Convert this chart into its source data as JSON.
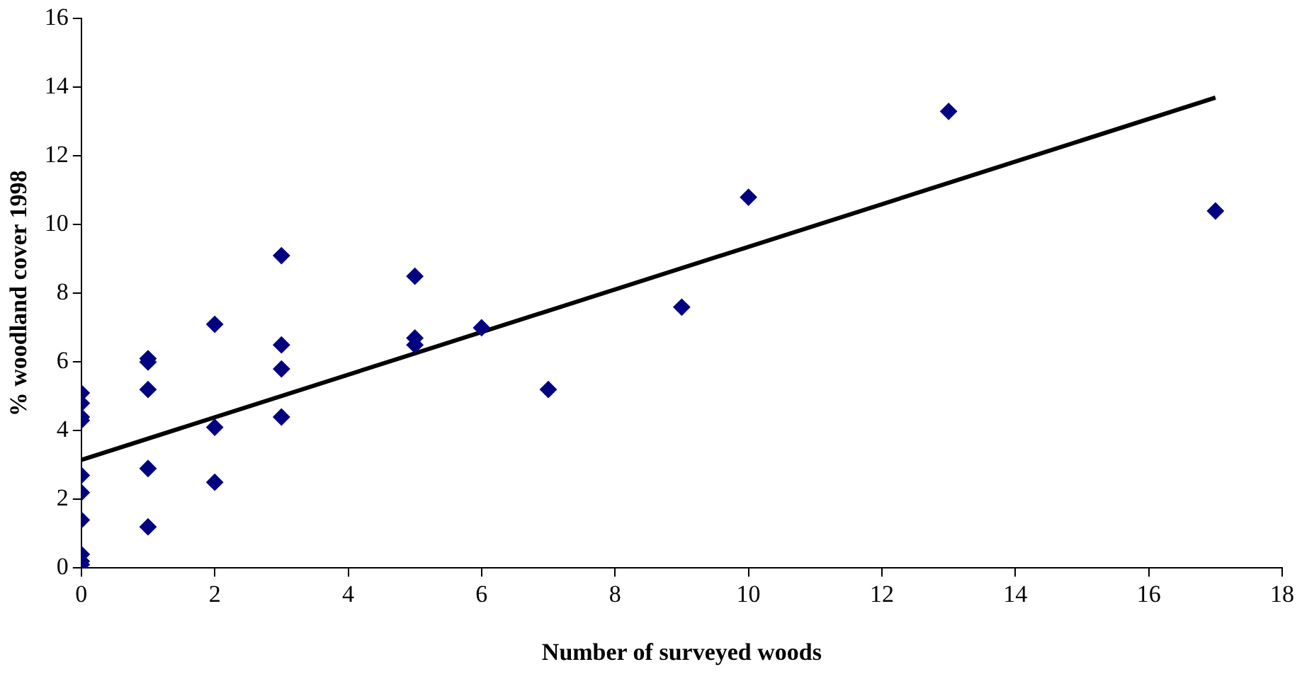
{
  "chart_data": {
    "type": "scatter",
    "xlabel": "Number of surveyed woods",
    "ylabel": "% woodland cover 1998",
    "xlim": [
      0,
      18
    ],
    "xticks": [
      0,
      2,
      4,
      6,
      8,
      10,
      12,
      14,
      16,
      18
    ],
    "ylim": [
      0,
      16
    ],
    "yticks": [
      0,
      2,
      4,
      6,
      8,
      10,
      12,
      14,
      16
    ],
    "grid": false,
    "legend": false,
    "marker": "diamond",
    "series": [
      {
        "type": "scatter",
        "color": "#000080",
        "x": [
          0,
          0,
          0,
          0,
          0,
          0,
          0,
          0,
          0,
          0,
          1,
          1,
          1,
          1,
          1,
          2,
          2,
          2,
          3,
          3,
          3,
          3,
          5,
          5,
          5,
          6,
          7,
          9,
          10,
          13,
          17
        ],
        "values": [
          5.1,
          4.8,
          4.4,
          4.3,
          2.7,
          2.2,
          1.4,
          0.4,
          0.2,
          0.1,
          6.1,
          6.0,
          5.2,
          2.9,
          1.2,
          7.1,
          4.1,
          2.5,
          9.1,
          6.5,
          5.8,
          4.4,
          8.5,
          6.7,
          6.5,
          7.0,
          5.2,
          7.6,
          10.8,
          13.3,
          10.4
        ]
      },
      {
        "type": "line",
        "color": "#000000",
        "x": [
          0,
          17
        ],
        "values": [
          3.15,
          13.7
        ],
        "marker": "none",
        "line_style": "solid"
      }
    ]
  }
}
